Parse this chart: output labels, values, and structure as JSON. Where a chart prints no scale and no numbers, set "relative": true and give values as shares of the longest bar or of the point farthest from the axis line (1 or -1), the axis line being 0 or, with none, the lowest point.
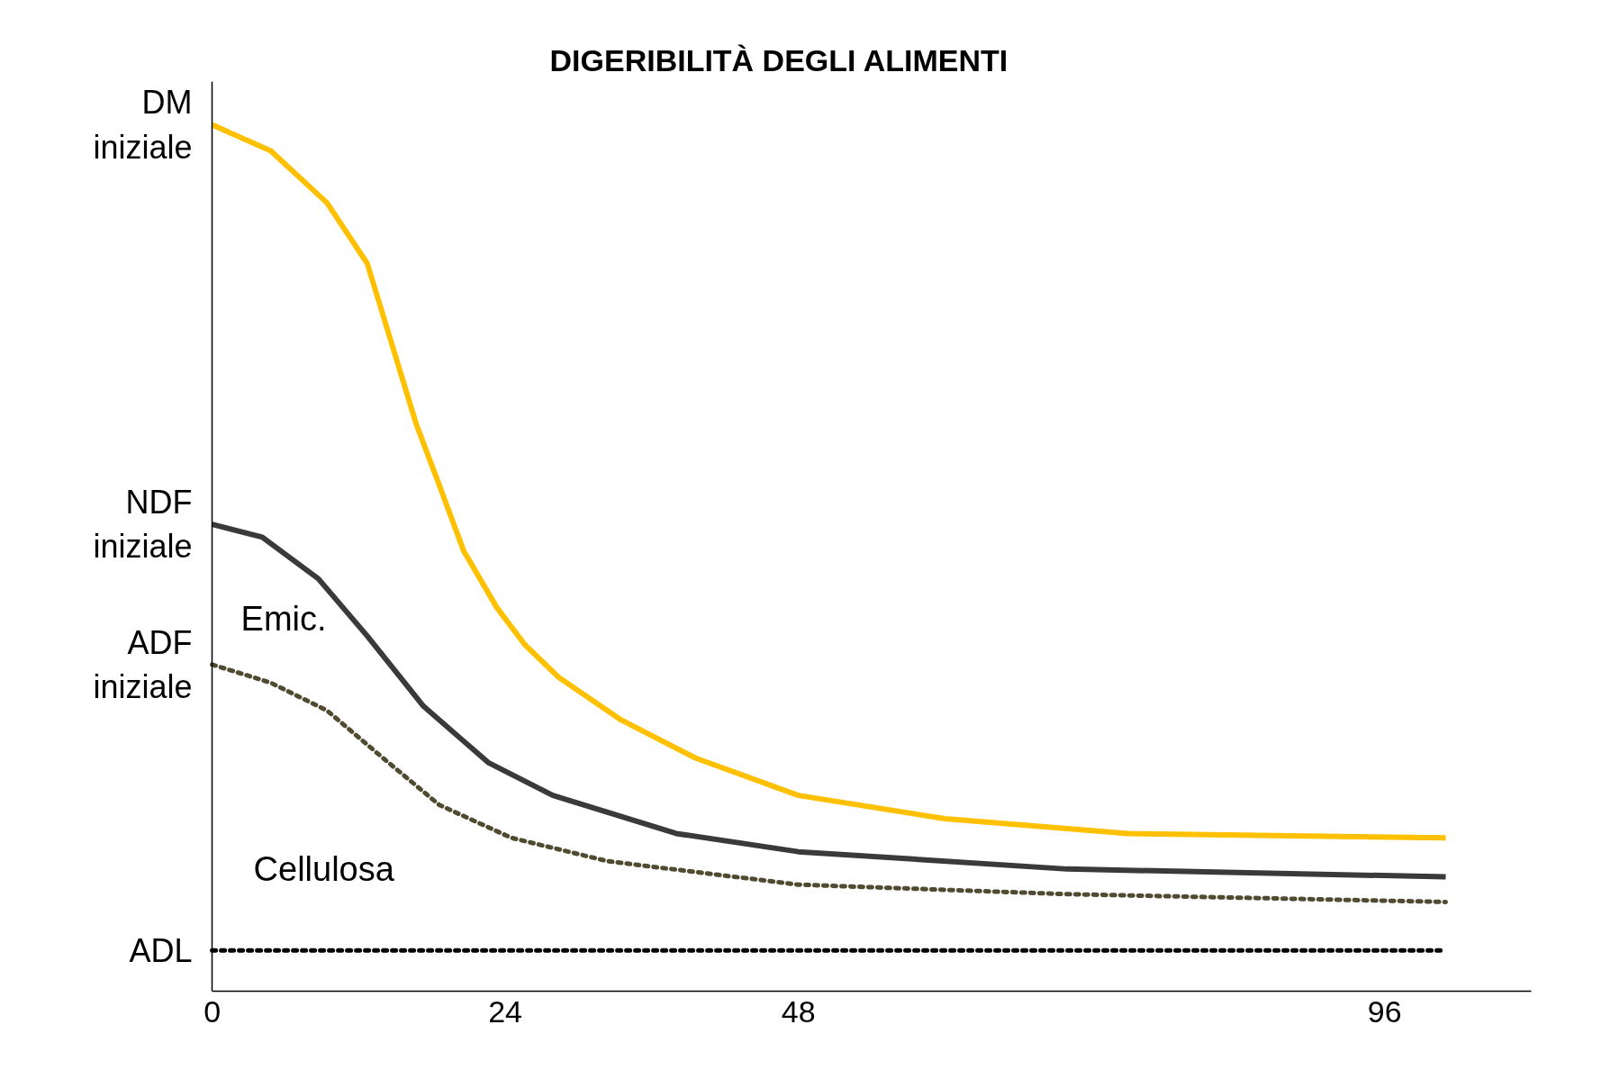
{
  "chart_data": {
    "type": "line",
    "title": "DIGERIBILITÀ DEGLI ALIMENTI",
    "relative": true,
    "xlim": [
      0,
      108
    ],
    "xticks": [
      0,
      24,
      48,
      96
    ],
    "series": [
      {
        "color": "#ffc000",
        "line_style": "solid",
        "x": [
          0,
          4.8,
          9.4,
          12.7,
          16.7,
          18.6,
          20.6,
          23.3,
          25.6,
          28.4,
          33.5,
          39.6,
          48,
          60,
          75,
          101
        ],
        "values": [
          1.0,
          0.97,
          0.91,
          0.84,
          0.655,
          0.584,
          0.508,
          0.443,
          0.4,
          0.362,
          0.313,
          0.269,
          0.226,
          0.199,
          0.182,
          0.177
        ]
      },
      {
        "color": "#3a3a3a",
        "line_style": "solid",
        "x": [
          0,
          4.1,
          8.7,
          12.7,
          17.3,
          22.6,
          27.9,
          38,
          48,
          70,
          101
        ],
        "values": [
          0.539,
          0.524,
          0.476,
          0.41,
          0.329,
          0.264,
          0.226,
          0.182,
          0.161,
          0.141,
          0.132
        ]
      },
      {
        "color": "#4f4a30",
        "line_style": "dotted",
        "x": [
          0,
          4.8,
          9.4,
          14,
          18.6,
          24.5,
          32.4,
          48,
          70,
          101
        ],
        "values": [
          0.377,
          0.356,
          0.324,
          0.269,
          0.215,
          0.177,
          0.15,
          0.123,
          0.112,
          0.103
        ]
      },
      {
        "color": "#000000",
        "line_style": "dotted",
        "x": [
          0,
          101
        ],
        "values": [
          0.047,
          0.047
        ]
      }
    ],
    "annotations": [
      "DM\niniziale",
      "NDF\niniziale",
      "ADF\niniziale",
      "ADL",
      "Emic.",
      "Cellulosa"
    ]
  }
}
